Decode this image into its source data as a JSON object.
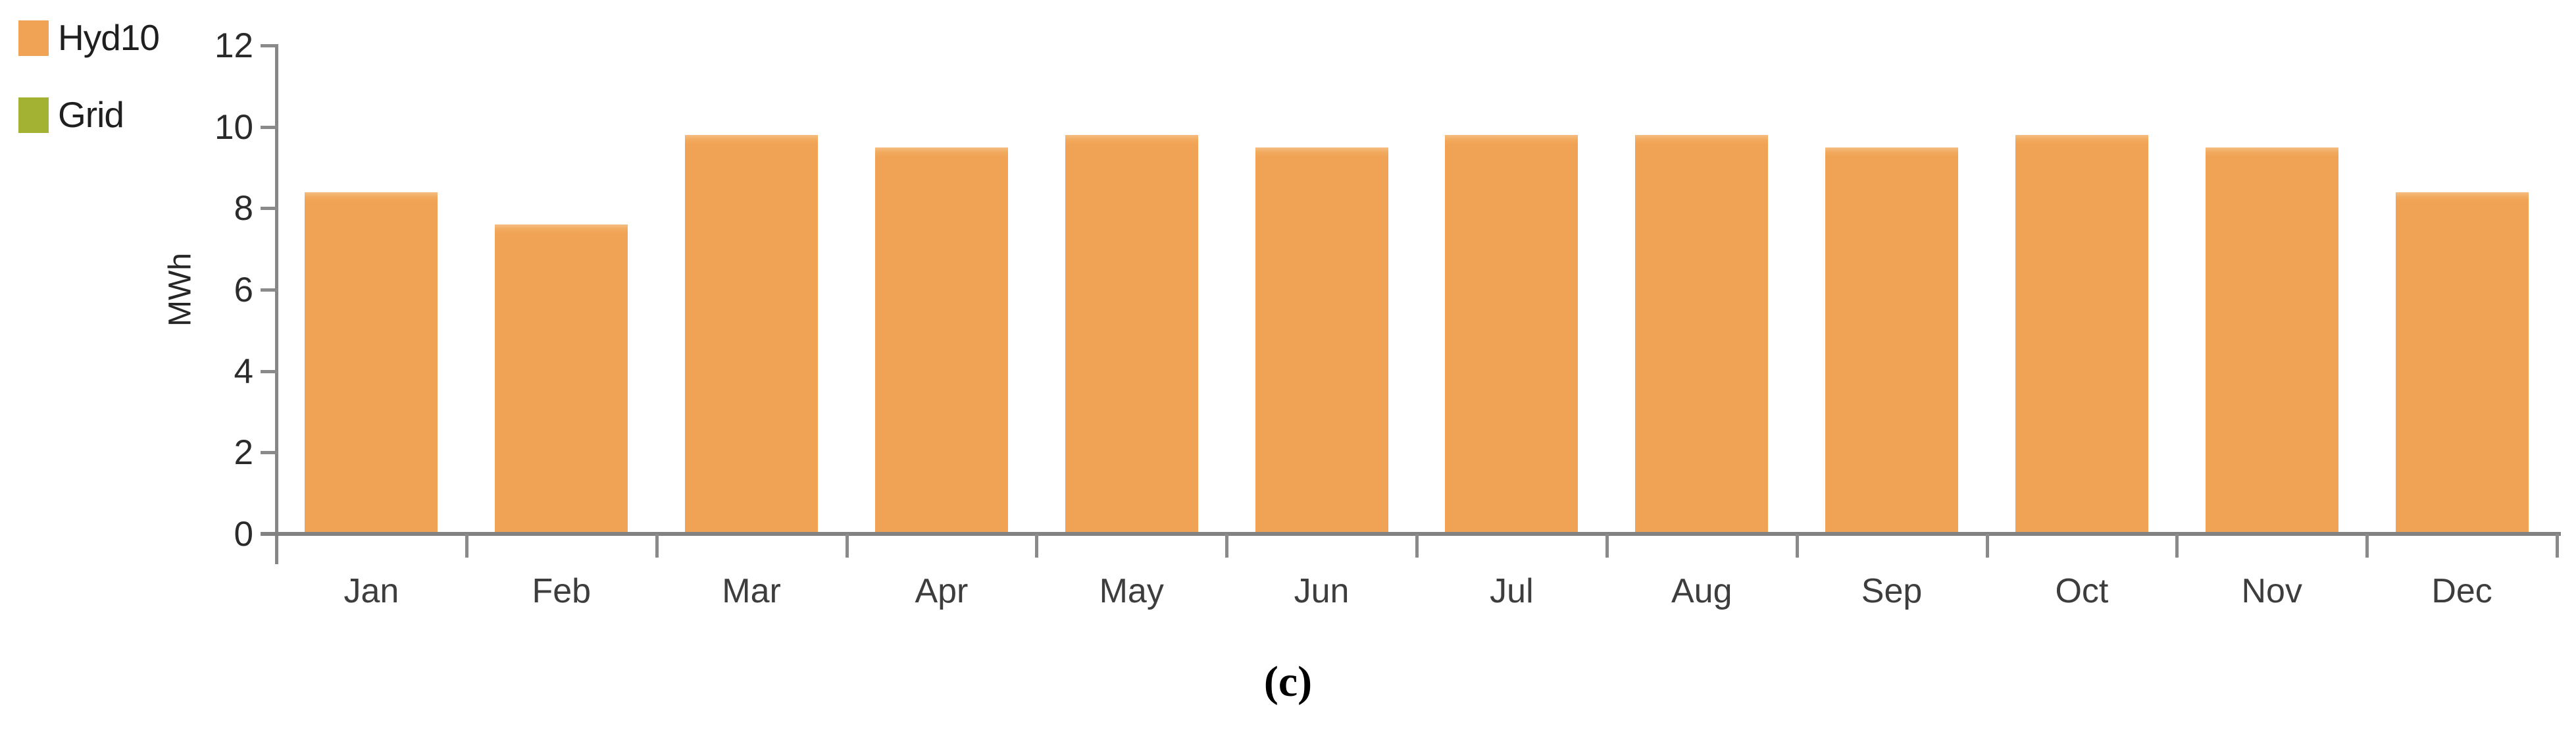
{
  "figure": {
    "caption": "(c)"
  },
  "legend": {
    "items": [
      {
        "label": "Hyd10",
        "color": "#F0A355"
      },
      {
        "label": "Grid",
        "color": "#A4B233"
      }
    ]
  },
  "chart_data": {
    "type": "bar",
    "categories": [
      "Jan",
      "Feb",
      "Mar",
      "Apr",
      "May",
      "Jun",
      "Jul",
      "Aug",
      "Sep",
      "Oct",
      "Nov",
      "Dec"
    ],
    "series": [
      {
        "name": "Hyd10",
        "color": "#F0A355",
        "values": [
          8.4,
          7.6,
          9.8,
          9.5,
          9.8,
          9.5,
          9.8,
          9.8,
          9.5,
          9.8,
          9.5,
          8.4
        ]
      },
      {
        "name": "Grid",
        "color": "#A4B233",
        "values": [
          0,
          0,
          0,
          0,
          0,
          0,
          0,
          0,
          0,
          0,
          0,
          0
        ]
      }
    ],
    "title": "",
    "xlabel": "",
    "ylabel": "MWh",
    "ylim": [
      0,
      12
    ],
    "yticks": [
      0,
      2,
      4,
      6,
      8,
      10,
      12
    ],
    "grid": false,
    "legend_position": "top-left"
  }
}
